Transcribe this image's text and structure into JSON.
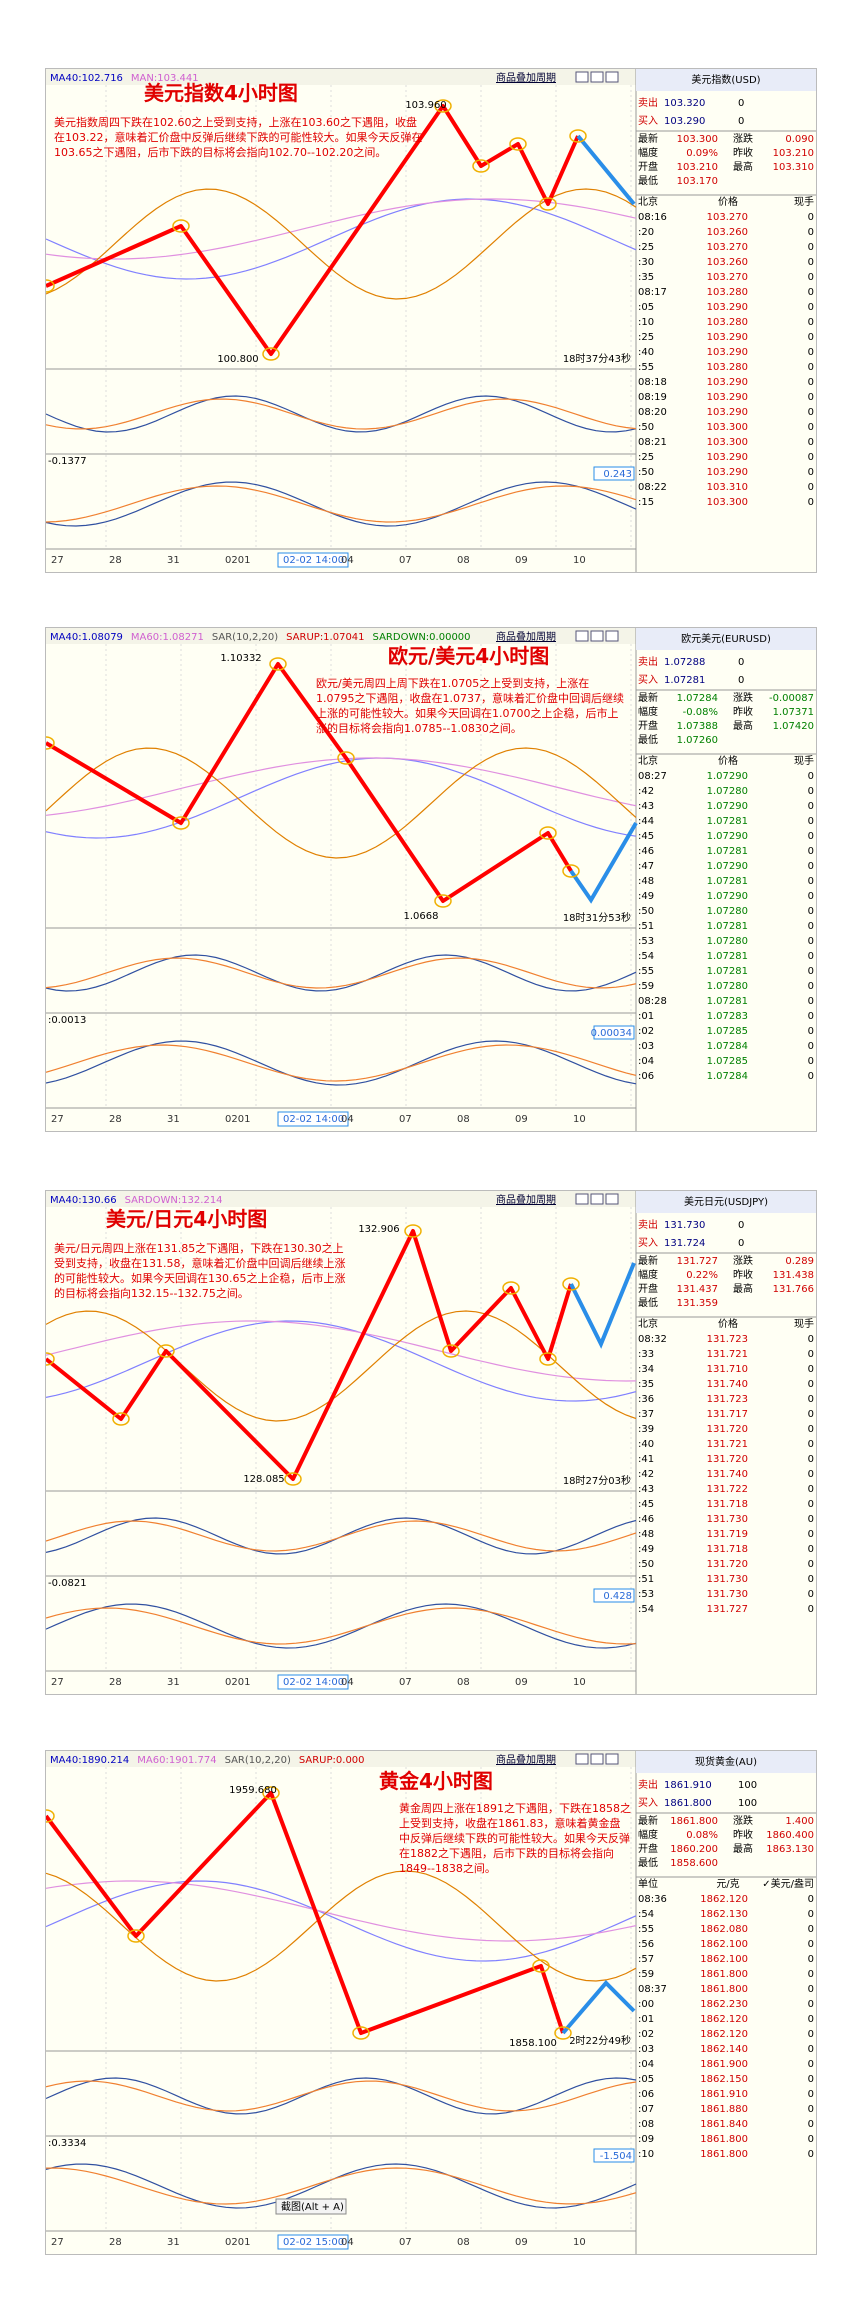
{
  "panels": [
    {
      "legend": [
        "MA40:102.716",
        "MAN:103.441"
      ],
      "menu": [
        "商品叠加",
        "周期"
      ],
      "title": "美元指数4小时图",
      "comment": "美元指数周四下跌在102.60之上受到支持，上涨在103.60之下遇阻，收盘在103.22，意味着汇价盘中反弹后继续下跌的可能性较大。如果今天反弹在103.65之下遇阻，后市下跌的目标将会指向102.70--102.20之间。",
      "levels": [
        "103.960",
        "100.800"
      ],
      "clock": "18时37分43秒",
      "sub_labels": [
        "-0.1377",
        "0.243"
      ],
      "xaxis": [
        "27",
        "28",
        "31",
        "0201",
        "02-02 14:00",
        "04",
        "07",
        "08",
        "09",
        "10"
      ],
      "price_color": "#d00000",
      "quote": {
        "name": "美元指数(USD)",
        "sell": [
          "卖出",
          "103.320",
          "0"
        ],
        "buy": [
          "买入",
          "103.290",
          "0"
        ],
        "stats": [
          [
            "最新",
            "103.300",
            "涨跌",
            "0.090"
          ],
          [
            "幅度",
            "0.09%",
            "昨收",
            "103.210"
          ],
          [
            "开盘",
            "103.210",
            "最高",
            "103.310"
          ],
          [
            "最低",
            "103.170"
          ]
        ],
        "head": [
          "北京",
          "价格",
          "现手"
        ],
        "rows": [
          [
            "08:16",
            "103.270",
            "0"
          ],
          [
            ":20",
            "103.260",
            "0"
          ],
          [
            ":25",
            "103.270",
            "0"
          ],
          [
            ":30",
            "103.260",
            "0"
          ],
          [
            ":35",
            "103.270",
            "0"
          ],
          [
            "08:17",
            "103.280",
            "0"
          ],
          [
            ":05",
            "103.290",
            "0"
          ],
          [
            ":10",
            "103.280",
            "0"
          ],
          [
            ":25",
            "103.290",
            "0"
          ],
          [
            ":40",
            "103.290",
            "0"
          ],
          [
            ":55",
            "103.280",
            "0"
          ],
          [
            "08:18",
            "103.290",
            "0"
          ],
          [
            "08:19",
            "103.290",
            "0"
          ],
          [
            "08:20",
            "103.290",
            "0"
          ],
          [
            ":50",
            "103.300",
            "0"
          ],
          [
            "08:21",
            "103.300",
            "0"
          ],
          [
            ":25",
            "103.290",
            "0"
          ],
          [
            ":50",
            "103.290",
            "0"
          ],
          [
            "08:22",
            "103.310",
            "0"
          ],
          [
            ":15",
            "103.300",
            "0"
          ]
        ]
      }
    },
    {
      "legend": [
        "MA40:1.08079",
        "MA60:1.08271",
        "SAR(10,2,20)",
        "SARUP:1.07041",
        "SARDOWN:0.00000"
      ],
      "menu": [
        "商品叠加",
        "周期"
      ],
      "title": "欧元/美元4小时图",
      "comment": "欧元/美元周四上周下跌在1.0705之上受到支持，上涨在1.0795之下遇阻，收盘在1.0737，意味着汇价盘中回调后继续上涨的可能性较大。如果今天回调在1.0700之上企稳，后市上涨的目标将会指向1.0785--1.0830之间。",
      "levels": [
        "1.10332",
        "1.0668"
      ],
      "clock": "18时31分53秒",
      "sub_labels": [
        ":0.0013",
        "0.00034"
      ],
      "xaxis": [
        "27",
        "28",
        "31",
        "0201",
        "02-02 14:00",
        "04",
        "07",
        "08",
        "09",
        "10"
      ],
      "price_color": "#008000",
      "quote": {
        "name": "欧元美元(EURUSD)",
        "sell": [
          "卖出",
          "1.07288",
          "0"
        ],
        "buy": [
          "买入",
          "1.07281",
          "0"
        ],
        "stats": [
          [
            "最新",
            "1.07284",
            "涨跌",
            "-0.00087"
          ],
          [
            "幅度",
            "-0.08%",
            "昨收",
            "1.07371"
          ],
          [
            "开盘",
            "1.07388",
            "最高",
            "1.07420"
          ],
          [
            "最低",
            "1.07260"
          ]
        ],
        "head": [
          "北京",
          "价格",
          "现手"
        ],
        "rows": [
          [
            "08:27",
            "1.07290",
            "0"
          ],
          [
            ":42",
            "1.07280",
            "0"
          ],
          [
            ":43",
            "1.07290",
            "0"
          ],
          [
            ":44",
            "1.07281",
            "0"
          ],
          [
            ":45",
            "1.07290",
            "0"
          ],
          [
            ":46",
            "1.07281",
            "0"
          ],
          [
            ":47",
            "1.07290",
            "0"
          ],
          [
            ":48",
            "1.07281",
            "0"
          ],
          [
            ":49",
            "1.07290",
            "0"
          ],
          [
            ":50",
            "1.07280",
            "0"
          ],
          [
            ":51",
            "1.07281",
            "0"
          ],
          [
            ":53",
            "1.07280",
            "0"
          ],
          [
            ":54",
            "1.07281",
            "0"
          ],
          [
            ":55",
            "1.07281",
            "0"
          ],
          [
            ":59",
            "1.07280",
            "0"
          ],
          [
            "08:28",
            "1.07281",
            "0"
          ],
          [
            ":01",
            "1.07283",
            "0"
          ],
          [
            ":02",
            "1.07285",
            "0"
          ],
          [
            ":03",
            "1.07284",
            "0"
          ],
          [
            ":04",
            "1.07285",
            "0"
          ],
          [
            ":06",
            "1.07284",
            "0"
          ]
        ]
      }
    },
    {
      "legend": [
        "MA40:130.66",
        "SARDOWN:132.214"
      ],
      "menu": [
        "商品叠加",
        "周期"
      ],
      "title": "美元/日元4小时图",
      "comment": "美元/日元周四上涨在131.85之下遇阻，下跌在130.30之上受到支持，收盘在131.58，意味着汇价盘中回调后继续上涨的可能性较大。如果今天回调在130.65之上企稳，后市上涨的目标将会指向132.15--132.75之间。",
      "levels": [
        "132.906",
        "128.085"
      ],
      "clock": "18时27分03秒",
      "sub_labels": [
        "-0.0821",
        "0.428"
      ],
      "xaxis": [
        "27",
        "28",
        "31",
        "0201",
        "02-02 14:00",
        "04",
        "07",
        "08",
        "09",
        "10"
      ],
      "price_color": "#d00000",
      "quote": {
        "name": "美元日元(USDJPY)",
        "sell": [
          "卖出",
          "131.730",
          "0"
        ],
        "buy": [
          "买入",
          "131.724",
          "0"
        ],
        "stats": [
          [
            "最新",
            "131.727",
            "涨跌",
            "0.289"
          ],
          [
            "幅度",
            "0.22%",
            "昨收",
            "131.438"
          ],
          [
            "开盘",
            "131.437",
            "最高",
            "131.766"
          ],
          [
            "最低",
            "131.359"
          ]
        ],
        "head": [
          "北京",
          "价格",
          "现手"
        ],
        "rows": [
          [
            "08:32",
            "131.723",
            "0"
          ],
          [
            ":33",
            "131.721",
            "0"
          ],
          [
            ":34",
            "131.710",
            "0"
          ],
          [
            ":35",
            "131.740",
            "0"
          ],
          [
            ":36",
            "131.723",
            "0"
          ],
          [
            ":37",
            "131.717",
            "0"
          ],
          [
            ":39",
            "131.720",
            "0"
          ],
          [
            ":40",
            "131.721",
            "0"
          ],
          [
            ":41",
            "131.720",
            "0"
          ],
          [
            ":42",
            "131.740",
            "0"
          ],
          [
            ":43",
            "131.722",
            "0"
          ],
          [
            ":45",
            "131.718",
            "0"
          ],
          [
            ":46",
            "131.730",
            "0"
          ],
          [
            ":48",
            "131.719",
            "0"
          ],
          [
            ":49",
            "131.718",
            "0"
          ],
          [
            ":50",
            "131.720",
            "0"
          ],
          [
            ":51",
            "131.730",
            "0"
          ],
          [
            ":53",
            "131.730",
            "0"
          ],
          [
            ":54",
            "131.727",
            "0"
          ]
        ]
      }
    },
    {
      "legend": [
        "MA40:1890.214",
        "MA60:1901.774",
        "SAR(10,2,20)",
        "SARUP:0.000"
      ],
      "menu": [
        "商品叠加",
        "周期"
      ],
      "title": "黄金4小时图",
      "comment": "黄金周四上涨在1891之下遇阻，下跌在1858之上受到支持，收盘在1861.83，意味着黄金盘中反弹后继续下跌的可能性较大。如果今天反弹在1882之下遇阻，后市下跌的目标将会指向1849--1838之间。",
      "levels": [
        "1959.680",
        "1858.100"
      ],
      "clock": "2时22分49秒",
      "sub_labels": [
        ":0.3334",
        "-1.504"
      ],
      "tooltip": "截图(Alt + A)",
      "xaxis": [
        "27",
        "28",
        "31",
        "0201",
        "02-02 15:00",
        "04",
        "07",
        "08",
        "09",
        "10"
      ],
      "price_color": "#d00000",
      "quote": {
        "name": "现货黄金(AU)",
        "sell": [
          "卖出",
          "1861.910",
          "100"
        ],
        "buy": [
          "买入",
          "1861.800",
          "100"
        ],
        "stats": [
          [
            "最新",
            "1861.800",
            "涨跌",
            "1.400"
          ],
          [
            "幅度",
            "0.08%",
            "昨收",
            "1860.400"
          ],
          [
            "开盘",
            "1860.200",
            "最高",
            "1863.130"
          ],
          [
            "最低",
            "1858.600"
          ]
        ],
        "head": [
          "单位",
          "元/克",
          "✓美元/盎司"
        ],
        "rows": [
          [
            "08:36",
            "1862.120",
            "0"
          ],
          [
            ":54",
            "1862.130",
            "0"
          ],
          [
            ":55",
            "1862.080",
            "0"
          ],
          [
            ":56",
            "1862.100",
            "0"
          ],
          [
            ":57",
            "1862.100",
            "0"
          ],
          [
            ":59",
            "1861.800",
            "0"
          ],
          [
            "08:37",
            "1861.800",
            "0"
          ],
          [
            ":00",
            "1862.230",
            "0"
          ],
          [
            ":01",
            "1862.120",
            "0"
          ],
          [
            ":02",
            "1862.120",
            "0"
          ],
          [
            ":03",
            "1862.140",
            "0"
          ],
          [
            ":04",
            "1861.900",
            "0"
          ],
          [
            ":05",
            "1862.150",
            "0"
          ],
          [
            ":06",
            "1861.910",
            "0"
          ],
          [
            ":07",
            "1861.880",
            "0"
          ],
          [
            ":08",
            "1861.840",
            "0"
          ],
          [
            ":09",
            "1861.800",
            "0"
          ],
          [
            ":10",
            "1861.800",
            "0"
          ]
        ]
      }
    }
  ]
}
